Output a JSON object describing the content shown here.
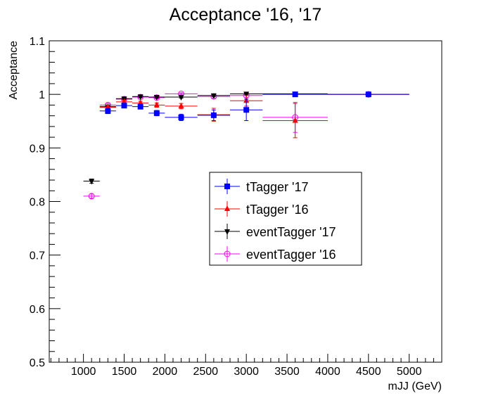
{
  "chart_data": {
    "type": "scatter",
    "title": "Acceptance '16, '17",
    "xlabel": "mJJ (GeV)",
    "ylabel": "Acceptance",
    "xlim": [
      580,
      5400
    ],
    "ylim": [
      0.5,
      1.1
    ],
    "x_ticks": [
      "1000",
      "1500",
      "2000",
      "2500",
      "3000",
      "3500",
      "4000",
      "4500",
      "5000"
    ],
    "y_ticks": [
      "0.5",
      "0.6",
      "0.7",
      "0.8",
      "0.9",
      "1",
      "1.1"
    ],
    "grid": false,
    "legend_position": "center-right",
    "series": [
      {
        "name": "tTagger '17",
        "color": "#0000ff",
        "marker": "square",
        "points": [
          {
            "x": 1300,
            "y": 0.969,
            "xerr": [
              1200,
              1400
            ],
            "yerr": 0.005
          },
          {
            "x": 1500,
            "y": 0.979,
            "xerr": [
              1400,
              1600
            ],
            "yerr": 0.004
          },
          {
            "x": 1700,
            "y": 0.977,
            "xerr": [
              1600,
              1800
            ],
            "yerr": 0.004
          },
          {
            "x": 1900,
            "y": 0.965,
            "xerr": [
              1800,
              2000
            ],
            "yerr": 0.005
          },
          {
            "x": 2200,
            "y": 0.957,
            "xerr": [
              2000,
              2400
            ],
            "yerr": 0.006
          },
          {
            "x": 2600,
            "y": 0.961,
            "xerr": [
              2400,
              2800
            ],
            "yerr": 0.01
          },
          {
            "x": 3000,
            "y": 0.971,
            "xerr": [
              2800,
              3200
            ],
            "yerr": 0.02
          },
          {
            "x": 3600,
            "y": 1.0,
            "xerr": [
              3200,
              4000
            ],
            "yerr": 0.0
          },
          {
            "x": 4500,
            "y": 1.0,
            "xerr": [
              4000,
              5000
            ],
            "yerr": 0.0
          }
        ]
      },
      {
        "name": "tTagger '16",
        "color": "#ff0000",
        "marker": "triangle-up",
        "points": [
          {
            "x": 1300,
            "y": 0.976,
            "xerr": [
              1200,
              1400
            ],
            "yerr": 0.004
          },
          {
            "x": 1500,
            "y": 0.986,
            "xerr": [
              1400,
              1600
            ],
            "yerr": 0.003
          },
          {
            "x": 1700,
            "y": 0.984,
            "xerr": [
              1600,
              1800
            ],
            "yerr": 0.003
          },
          {
            "x": 1900,
            "y": 0.98,
            "xerr": [
              1800,
              2000
            ],
            "yerr": 0.004
          },
          {
            "x": 2200,
            "y": 0.978,
            "xerr": [
              2000,
              2400
            ],
            "yerr": 0.005
          },
          {
            "x": 2600,
            "y": 0.962,
            "xerr": [
              2400,
              2800
            ],
            "yerr": 0.012
          },
          {
            "x": 3000,
            "y": 0.988,
            "xerr": [
              2800,
              3200
            ],
            "yerr": 0.01
          },
          {
            "x": 3600,
            "y": 0.951,
            "xerr": [
              3200,
              4000
            ],
            "yerr": 0.032
          },
          {
            "x": 4500,
            "y": 1.0,
            "xerr": [
              4000,
              5000
            ],
            "yerr": 0.0
          }
        ]
      },
      {
        "name": "eventTagger '17",
        "color": "#000000",
        "marker": "triangle-down",
        "points": [
          {
            "x": 1100,
            "y": 0.838,
            "xerr": [
              1000,
              1200
            ],
            "yerr": 0.004
          },
          {
            "x": 1300,
            "y": 0.977,
            "xerr": [
              1200,
              1400
            ],
            "yerr": 0.003
          },
          {
            "x": 1500,
            "y": 0.992,
            "xerr": [
              1400,
              1600
            ],
            "yerr": 0.002
          },
          {
            "x": 1700,
            "y": 0.996,
            "xerr": [
              1600,
              1800
            ],
            "yerr": 0.002
          },
          {
            "x": 1900,
            "y": 0.995,
            "xerr": [
              1800,
              2000
            ],
            "yerr": 0.002
          },
          {
            "x": 2200,
            "y": 0.995,
            "xerr": [
              2000,
              2400
            ],
            "yerr": 0.002
          },
          {
            "x": 2600,
            "y": 0.998,
            "xerr": [
              2400,
              2800
            ],
            "yerr": 0.002
          },
          {
            "x": 3000,
            "y": 1.001,
            "xerr": [
              2800,
              3200
            ],
            "yerr": 0.001
          },
          {
            "x": 3600,
            "y": 1.001,
            "xerr": [
              3200,
              4000
            ],
            "yerr": 0.0
          },
          {
            "x": 4500,
            "y": 1.0,
            "xerr": [
              4000,
              5000
            ],
            "yerr": 0.0
          }
        ]
      },
      {
        "name": "eventTagger '16",
        "color": "#ff00ff",
        "marker": "open-circle",
        "points": [
          {
            "x": 1100,
            "y": 0.81,
            "xerr": [
              1000,
              1200
            ],
            "yerr": 0.004
          },
          {
            "x": 1300,
            "y": 0.98,
            "xerr": [
              1200,
              1400
            ],
            "yerr": 0.003
          },
          {
            "x": 1500,
            "y": 0.991,
            "xerr": [
              1400,
              1600
            ],
            "yerr": 0.002
          },
          {
            "x": 1700,
            "y": 0.995,
            "xerr": [
              1600,
              1800
            ],
            "yerr": 0.002
          },
          {
            "x": 1900,
            "y": 0.994,
            "xerr": [
              1800,
              2000
            ],
            "yerr": 0.002
          },
          {
            "x": 2200,
            "y": 1.001,
            "xerr": [
              2000,
              2400
            ],
            "yerr": 0.002
          },
          {
            "x": 2600,
            "y": 0.996,
            "xerr": [
              2400,
              2800
            ],
            "yerr": 0.003
          },
          {
            "x": 3000,
            "y": 0.998,
            "xerr": [
              2800,
              3200
            ],
            "yerr": 0.004
          },
          {
            "x": 3600,
            "y": 0.957,
            "xerr": [
              3200,
              4000
            ],
            "yerr": 0.028
          },
          {
            "x": 4500,
            "y": 1.0,
            "xerr": [
              4000,
              5000
            ],
            "yerr": 0.0
          }
        ]
      }
    ]
  }
}
